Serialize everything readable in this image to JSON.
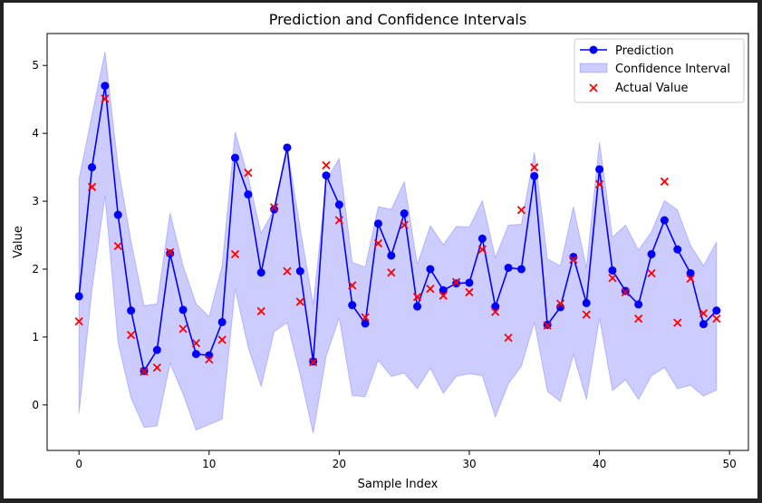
{
  "chart_data": {
    "type": "line",
    "title": "Prediction and Confidence Intervals",
    "xlabel": "Sample Index",
    "ylabel": "Value",
    "xlim": [
      -2.45,
      51.45
    ],
    "ylim": [
      -0.67,
      5.47
    ],
    "x_ticks": [
      0,
      10,
      20,
      30,
      40,
      50
    ],
    "y_ticks": [
      0,
      1,
      2,
      3,
      4,
      5
    ],
    "x": [
      0,
      1,
      2,
      3,
      4,
      5,
      6,
      7,
      8,
      9,
      10,
      11,
      12,
      13,
      14,
      15,
      16,
      17,
      18,
      19,
      20,
      21,
      22,
      23,
      24,
      25,
      26,
      27,
      28,
      29,
      30,
      31,
      32,
      33,
      34,
      35,
      36,
      37,
      38,
      39,
      40,
      41,
      42,
      43,
      44,
      45,
      46,
      47,
      48,
      49
    ],
    "series": [
      {
        "name": "Prediction",
        "kind": "line",
        "color": "#0000ff",
        "values": [
          1.6,
          3.5,
          4.7,
          2.8,
          1.39,
          0.5,
          0.81,
          2.23,
          1.4,
          0.75,
          0.73,
          1.22,
          3.64,
          3.1,
          1.95,
          2.88,
          3.79,
          1.97,
          0.64,
          3.38,
          2.95,
          1.47,
          1.2,
          2.67,
          2.2,
          2.82,
          1.45,
          2.0,
          1.69,
          1.79,
          1.8,
          2.45,
          1.45,
          2.02,
          2.0,
          3.37,
          1.18,
          1.44,
          2.18,
          1.5,
          3.47,
          1.98,
          1.68,
          1.48,
          2.22,
          2.72,
          2.29,
          1.94,
          1.19,
          1.39
        ]
      },
      {
        "name": "Confidence Interval",
        "kind": "band",
        "color": "#0000ff",
        "lower": [
          -0.13,
          1.7,
          3.08,
          0.92,
          0.1,
          -0.33,
          -0.31,
          0.61,
          0.16,
          -0.37,
          -0.29,
          -0.21,
          1.71,
          0.85,
          0.27,
          1.08,
          1.21,
          0.44,
          -0.42,
          0.72,
          1.28,
          0.14,
          0.12,
          0.66,
          0.42,
          0.47,
          0.24,
          0.54,
          0.17,
          0.42,
          0.46,
          0.43,
          -0.18,
          0.31,
          0.57,
          1.22,
          0.2,
          0.05,
          0.74,
          0.08,
          1.28,
          0.21,
          0.37,
          0.08,
          0.43,
          0.55,
          0.24,
          0.29,
          0.13,
          0.22
        ],
        "upper": [
          3.33,
          4.27,
          5.2,
          3.52,
          2.41,
          1.46,
          1.49,
          2.83,
          2.05,
          1.49,
          1.3,
          2.05,
          4.02,
          3.36,
          2.53,
          2.88,
          3.79,
          2.61,
          1.47,
          3.31,
          3.63,
          2.1,
          2.03,
          2.92,
          2.88,
          3.29,
          2.07,
          2.64,
          2.36,
          2.63,
          2.62,
          3.01,
          2.17,
          2.65,
          2.66,
          3.72,
          2.15,
          2.05,
          2.92,
          2.02,
          3.87,
          2.47,
          2.65,
          2.28,
          2.55,
          3.01,
          2.87,
          2.35,
          2.05,
          2.4
        ]
      },
      {
        "name": "Actual Value",
        "kind": "scatter",
        "color": "#ff0000",
        "values": [
          1.23,
          3.21,
          4.51,
          2.34,
          1.03,
          0.49,
          0.55,
          2.25,
          1.12,
          0.91,
          0.67,
          0.96,
          2.22,
          3.42,
          1.38,
          2.91,
          1.97,
          1.52,
          0.63,
          3.53,
          2.72,
          1.76,
          1.29,
          2.38,
          1.95,
          2.65,
          1.59,
          1.71,
          1.61,
          1.81,
          1.66,
          2.29,
          1.37,
          0.99,
          2.87,
          3.5,
          1.17,
          1.49,
          2.14,
          1.33,
          3.25,
          1.87,
          1.66,
          1.27,
          1.94,
          3.29,
          1.21,
          1.86,
          1.35,
          1.27
        ]
      }
    ],
    "legend": {
      "placement": "top-right",
      "entries": [
        "Prediction",
        "Confidence Interval",
        "Actual Value"
      ]
    },
    "grid": false
  }
}
